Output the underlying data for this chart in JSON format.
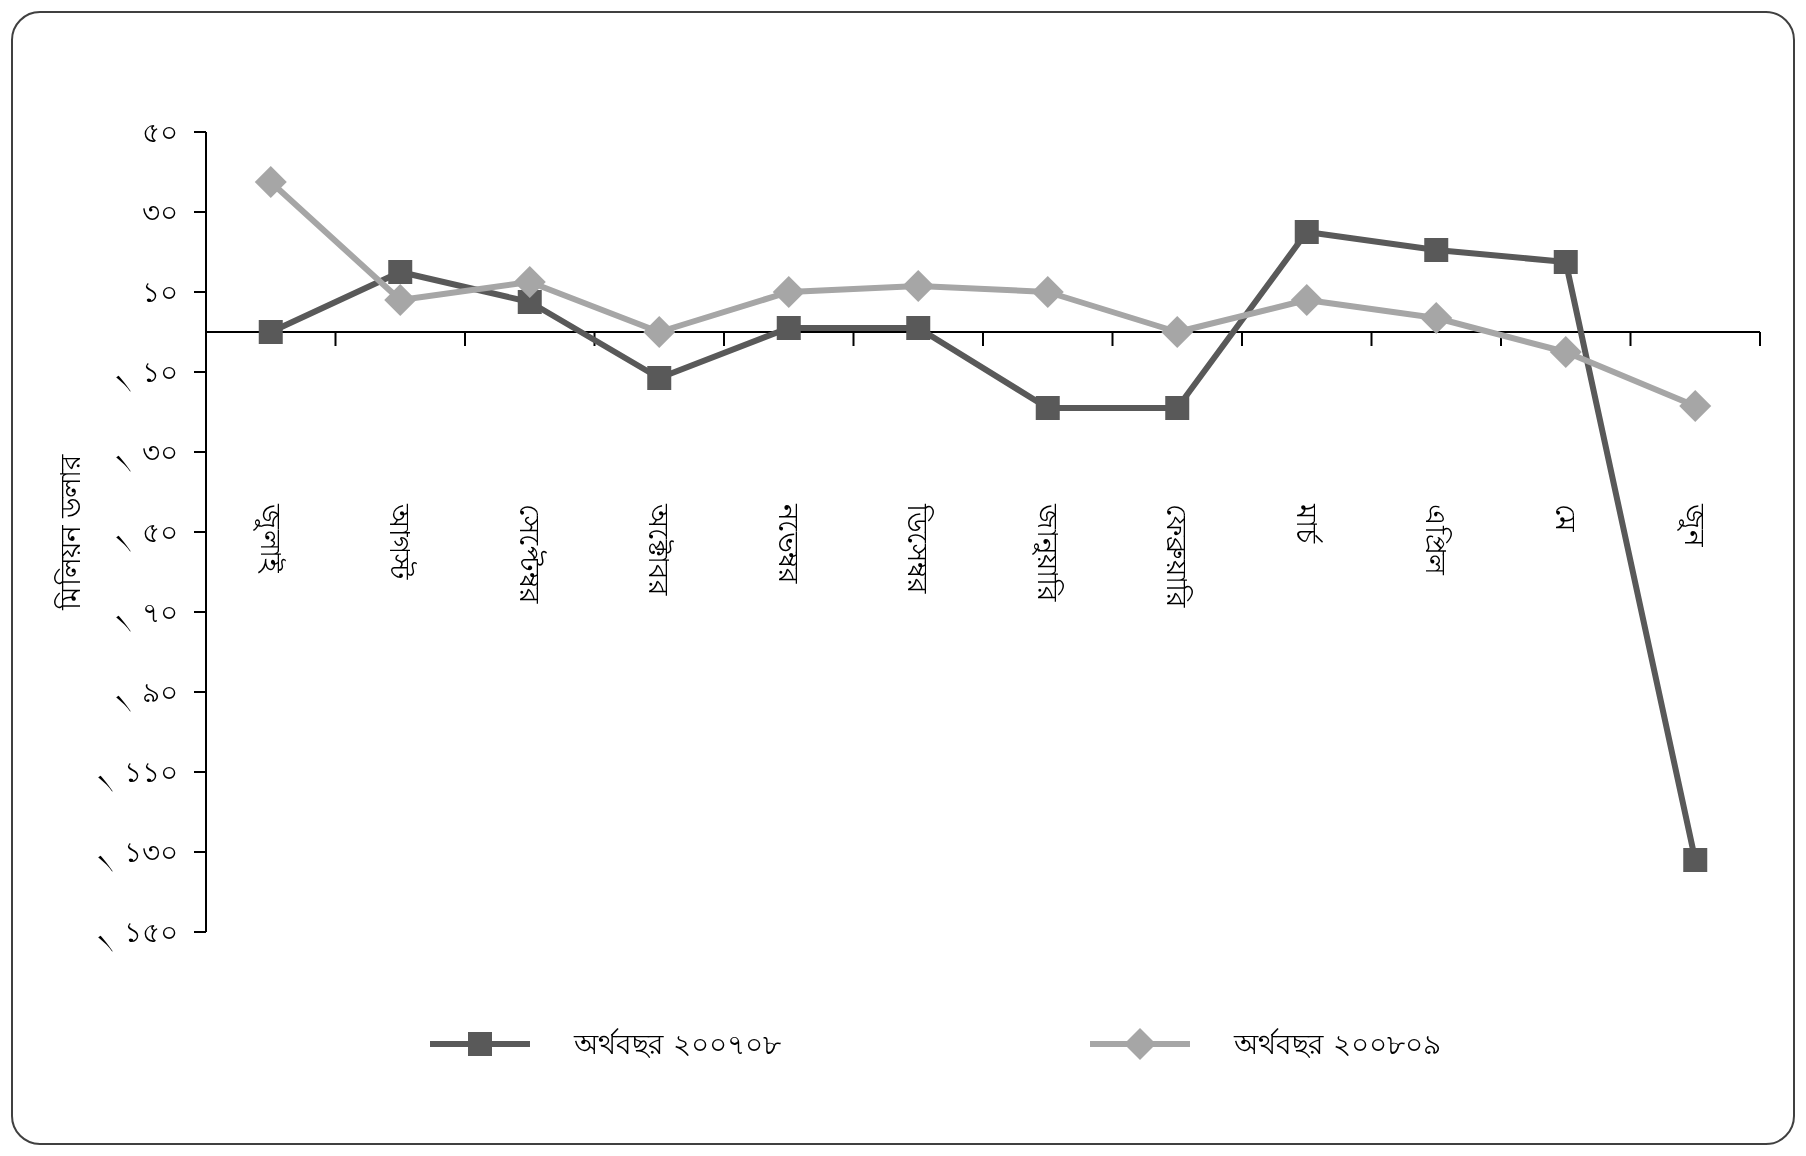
{
  "chart_data": {
    "type": "line",
    "ylabel": "মিলিয়ন ডলার",
    "categories": [
      "জুলাই",
      "আগস্ট",
      "সেপ্টেম্বর",
      "অক্টোবর",
      "নভেম্বর",
      "ডিসেম্বর",
      "জানুয়ারি",
      "ফেব্রুয়ারি",
      "মার্চ",
      "এপ্রিল",
      "মে",
      "জুন"
    ],
    "series": [
      {
        "name": "অর্থবছর ২০০৭০৮",
        "color": "#595959",
        "marker": "square",
        "values": [
          0,
          15,
          7.5,
          -11.5,
          1,
          1,
          -19,
          -19,
          25,
          20.5,
          17.5,
          -132
        ]
      },
      {
        "name": "অর্থবছর ২০০৮০৯",
        "color": "#a6a6a6",
        "marker": "diamond",
        "values": [
          37.5,
          8,
          12.5,
          0,
          10,
          11.5,
          10,
          0,
          8,
          3.5,
          -5,
          -18.5
        ]
      }
    ],
    "ylim": [
      -150,
      50
    ],
    "yticks": [
      {
        "value": 50,
        "label": "৫০"
      },
      {
        "value": 30,
        "label": "৩০"
      },
      {
        "value": 10,
        "label": "১০"
      },
      {
        "value": -10,
        "label": "৲ ১০"
      },
      {
        "value": -30,
        "label": "৲ ৩০"
      },
      {
        "value": -50,
        "label": "৲ ৫০"
      },
      {
        "value": -70,
        "label": "৲ ৭০"
      },
      {
        "value": -90,
        "label": "৲ ৯০"
      },
      {
        "value": -110,
        "label": "৲ ১১০"
      },
      {
        "value": -130,
        "label": "৲ ১৩০"
      },
      {
        "value": -150,
        "label": "৲ ১৫০"
      }
    ],
    "legend": "bottom",
    "grid": false
  }
}
